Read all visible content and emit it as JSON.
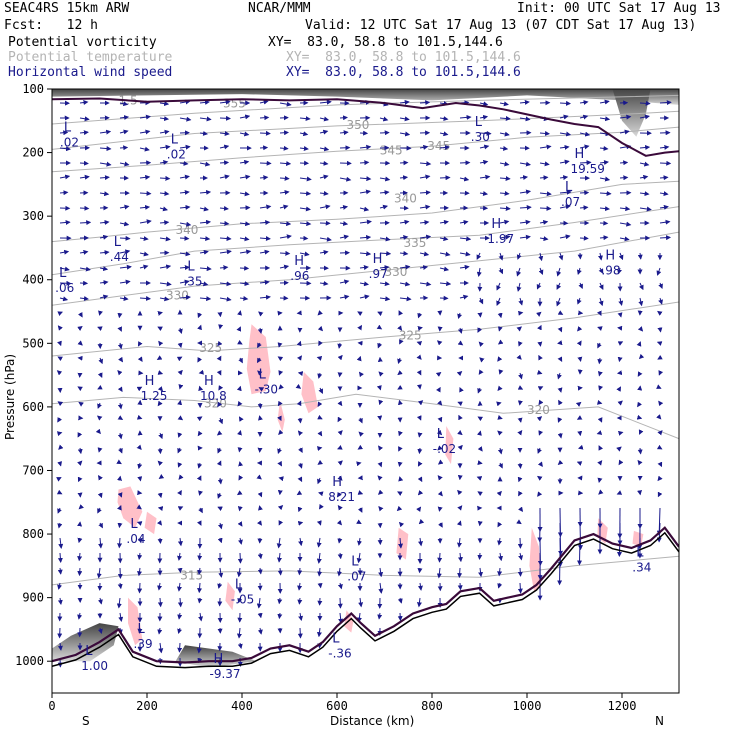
{
  "header": {
    "model": "SEAC4RS 15km ARW",
    "org": "NCAR/MMM",
    "init": "Init: 00 UTC Sat 17 Aug 13",
    "fcst": "Fcst:   12 h",
    "valid": "Valid: 12 UTC Sat 17 Aug 13 (07 CDT Sat 17 Aug 13)"
  },
  "legend": [
    {
      "name": "Potential vorticity",
      "xy": "XY=  83.0, 58.8 to 101.5,144.6",
      "color": "#000000"
    },
    {
      "name": "Potential temperature",
      "xy": "XY=  83.0, 58.8 to 101.5,144.6",
      "color": "#b4b4b4"
    },
    {
      "name": "Horizontal wind speed",
      "xy": "XY=  83.0, 58.8 to 101.5,144.6",
      "color": "#1a1a8c"
    }
  ],
  "chart_data": {
    "type": "cross-section",
    "xlabel": "Distance (km)",
    "ylabel": "Pressure (hPa)",
    "xlim": [
      0,
      1320
    ],
    "ylim": [
      1050,
      100
    ],
    "xticks": [
      0,
      200,
      400,
      600,
      800,
      1000,
      1200
    ],
    "yticks": [
      100,
      200,
      300,
      400,
      500,
      600,
      700,
      800,
      900,
      1000
    ],
    "end_labels": {
      "left": "S",
      "right": "N"
    },
    "colors": {
      "pv": "#3a0a3a",
      "theta": "#b4b4b4",
      "wind": "#1a1a8c",
      "shade_pink": "#ffc0c8"
    },
    "theta_contours": [
      {
        "label": "315",
        "points": [
          [
            0,
            880
          ],
          [
            150,
            865
          ],
          [
            300,
            860
          ],
          [
            500,
            858
          ],
          [
            700,
            865
          ],
          [
            900,
            868
          ],
          [
            1100,
            850
          ],
          [
            1320,
            835
          ]
        ]
      },
      {
        "label": "320",
        "points": [
          [
            0,
            595
          ],
          [
            150,
            585
          ],
          [
            300,
            590
          ],
          [
            420,
            600
          ],
          [
            520,
            595
          ],
          [
            640,
            580
          ],
          [
            800,
            595
          ],
          [
            950,
            610
          ],
          [
            1150,
            600
          ],
          [
            1320,
            650
          ]
        ]
      },
      {
        "label": "325",
        "points": [
          [
            0,
            520
          ],
          [
            200,
            505
          ],
          [
            330,
            512
          ],
          [
            480,
            505
          ],
          [
            700,
            490
          ],
          [
            900,
            478
          ],
          [
            1100,
            460
          ],
          [
            1320,
            435
          ]
        ]
      },
      {
        "label": "330",
        "points": [
          [
            0,
            440
          ],
          [
            150,
            425
          ],
          [
            300,
            410
          ],
          [
            500,
            400
          ],
          [
            700,
            385
          ],
          [
            900,
            370
          ],
          [
            1100,
            355
          ],
          [
            1320,
            325
          ]
        ]
      },
      {
        "label": "335",
        "points": [
          [
            0,
            392
          ],
          [
            150,
            375
          ],
          [
            300,
            355
          ],
          [
            500,
            345
          ],
          [
            700,
            337
          ],
          [
            900,
            330
          ],
          [
            1100,
            310
          ],
          [
            1320,
            285
          ]
        ]
      },
      {
        "label": "340",
        "points": [
          [
            0,
            340
          ],
          [
            100,
            333
          ],
          [
            200,
            325
          ],
          [
            400,
            312
          ],
          [
            600,
            305
          ],
          [
            800,
            295
          ],
          [
            1000,
            275
          ],
          [
            1200,
            250
          ],
          [
            1320,
            245
          ]
        ]
      },
      {
        "label": "345",
        "points": [
          [
            0,
            230
          ],
          [
            200,
            220
          ],
          [
            400,
            208
          ],
          [
            600,
            198
          ],
          [
            800,
            190
          ],
          [
            1000,
            176
          ],
          [
            1200,
            168
          ],
          [
            1320,
            160
          ]
        ]
      },
      {
        "label": "350",
        "points": [
          [
            0,
            195
          ],
          [
            300,
            170
          ],
          [
            600,
            158
          ],
          [
            900,
            150
          ],
          [
            1200,
            140
          ],
          [
            1320,
            135
          ]
        ]
      },
      {
        "label": "355",
        "points": [
          [
            0,
            155
          ],
          [
            300,
            138
          ],
          [
            600,
            125
          ],
          [
            900,
            118
          ],
          [
            1320,
            110
          ]
        ]
      }
    ],
    "theta_label_positions": [
      {
        "label": "315",
        "p": 865,
        "x": 270
      },
      {
        "label": "320",
        "p": 595,
        "x": 320
      },
      {
        "label": "320",
        "p": 605,
        "x": 1000
      },
      {
        "label": "325",
        "p": 507,
        "x": 310
      },
      {
        "label": "325",
        "p": 488,
        "x": 730
      },
      {
        "label": "330",
        "p": 425,
        "x": 240
      },
      {
        "label": "330",
        "p": 388,
        "x": 700
      },
      {
        "label": "335",
        "p": 342,
        "x": 740
      },
      {
        "label": "340",
        "p": 322,
        "x": 260
      },
      {
        "label": "340",
        "p": 272,
        "x": 720
      },
      {
        "label": "345",
        "p": 197,
        "x": 690
      },
      {
        "label": "345",
        "p": 190,
        "x": 790
      },
      {
        "label": "350",
        "p": 157,
        "x": 620
      },
      {
        "label": "355",
        "p": 123,
        "x": 360
      },
      {
        "label": "1.5",
        "p": 118,
        "x": 140
      }
    ],
    "pv_contour": [
      [
        0,
        116
      ],
      [
        100,
        115
      ],
      [
        200,
        120
      ],
      [
        300,
        118
      ],
      [
        400,
        116
      ],
      [
        500,
        118
      ],
      [
        600,
        116
      ],
      [
        700,
        122
      ],
      [
        780,
        130
      ],
      [
        850,
        122
      ],
      [
        900,
        126
      ],
      [
        950,
        132
      ],
      [
        1000,
        140
      ],
      [
        1050,
        148
      ],
      [
        1100,
        155
      ],
      [
        1150,
        160
      ],
      [
        1200,
        185
      ],
      [
        1250,
        205
      ],
      [
        1290,
        200
      ],
      [
        1320,
        198
      ]
    ],
    "terrain": [
      [
        0,
        1000
      ],
      [
        50,
        990
      ],
      [
        100,
        970
      ],
      [
        140,
        950
      ],
      [
        170,
        985
      ],
      [
        220,
        1000
      ],
      [
        280,
        1002
      ],
      [
        330,
        1000
      ],
      [
        380,
        1000
      ],
      [
        420,
        995
      ],
      [
        460,
        980
      ],
      [
        500,
        975
      ],
      [
        540,
        985
      ],
      [
        570,
        970
      ],
      [
        600,
        945
      ],
      [
        630,
        925
      ],
      [
        650,
        940
      ],
      [
        680,
        960
      ],
      [
        720,
        945
      ],
      [
        760,
        925
      ],
      [
        800,
        915
      ],
      [
        830,
        910
      ],
      [
        860,
        890
      ],
      [
        900,
        885
      ],
      [
        930,
        905
      ],
      [
        960,
        900
      ],
      [
        990,
        895
      ],
      [
        1020,
        880
      ],
      [
        1050,
        855
      ],
      [
        1100,
        810
      ],
      [
        1140,
        800
      ],
      [
        1180,
        815
      ],
      [
        1220,
        822
      ],
      [
        1260,
        810
      ],
      [
        1290,
        790
      ],
      [
        1320,
        820
      ]
    ],
    "hl_markers": [
      {
        "type": "L",
        "value": ".06",
        "x": 15,
        "p": 405
      },
      {
        "type": "L",
        "value": ".02",
        "x": 25,
        "p": 176
      },
      {
        "type": "L",
        "value": ".44",
        "x": 130,
        "p": 356
      },
      {
        "type": "L",
        "value": ".02",
        "x": 250,
        "p": 195
      },
      {
        "type": "L",
        "value": ".35",
        "x": 285,
        "p": 395
      },
      {
        "type": "H",
        "value": ".96",
        "x": 510,
        "p": 386
      },
      {
        "type": "H",
        "value": ".97",
        "x": 675,
        "p": 383
      },
      {
        "type": "L",
        "value": ".30",
        "x": 890,
        "p": 168
      },
      {
        "type": "L",
        "value": ".07",
        "x": 1080,
        "p": 270
      },
      {
        "type": "H",
        "value": "1.97",
        "x": 925,
        "p": 328
      },
      {
        "type": "H",
        "value": ".98",
        "x": 1165,
        "p": 378
      },
      {
        "type": "H",
        "value": "19.59",
        "x": 1100,
        "p": 218
      },
      {
        "type": "H",
        "value": "1.25",
        "x": 195,
        "p": 575
      },
      {
        "type": "H",
        "value": "10.8",
        "x": 320,
        "p": 575
      },
      {
        "type": "L",
        "value": "-.30",
        "x": 435,
        "p": 565
      },
      {
        "type": "L",
        "value": "-.02",
        "x": 810,
        "p": 658
      },
      {
        "type": "H",
        "value": "8.21",
        "x": 590,
        "p": 734
      },
      {
        "type": "L",
        "value": ".04",
        "x": 165,
        "p": 800
      },
      {
        "type": "L",
        "value": ".07",
        "x": 630,
        "p": 859
      },
      {
        "type": "L",
        "value": "-.05",
        "x": 385,
        "p": 895
      },
      {
        "type": "L",
        "value": ".34",
        "x": 1230,
        "p": 845
      },
      {
        "type": "L",
        "value": ".39",
        "x": 180,
        "p": 965
      },
      {
        "type": "L",
        "value": "-.36",
        "x": 590,
        "p": 980
      },
      {
        "type": "L",
        "value": "1.00",
        "x": 70,
        "p": 1000
      },
      {
        "type": "H",
        "value": "-9.37",
        "x": 340,
        "p": 1012
      }
    ],
    "pink_regions": [
      [
        [
          420,
          470
        ],
        [
          450,
          490
        ],
        [
          460,
          545
        ],
        [
          450,
          575
        ],
        [
          420,
          580
        ],
        [
          410,
          540
        ],
        [
          415,
          500
        ]
      ],
      [
        [
          530,
          545
        ],
        [
          550,
          560
        ],
        [
          560,
          600
        ],
        [
          540,
          610
        ],
        [
          525,
          580
        ]
      ],
      [
        [
          480,
          590
        ],
        [
          490,
          620
        ],
        [
          485,
          640
        ],
        [
          475,
          620
        ]
      ],
      [
        [
          140,
          730
        ],
        [
          165,
          725
        ],
        [
          190,
          765
        ],
        [
          175,
          790
        ],
        [
          150,
          775
        ],
        [
          138,
          750
        ]
      ],
      [
        [
          200,
          765
        ],
        [
          220,
          775
        ],
        [
          215,
          800
        ],
        [
          195,
          790
        ]
      ],
      [
        [
          730,
          790
        ],
        [
          750,
          800
        ],
        [
          745,
          840
        ],
        [
          725,
          830
        ]
      ],
      [
        [
          830,
          630
        ],
        [
          845,
          650
        ],
        [
          840,
          690
        ],
        [
          828,
          675
        ]
      ],
      [
        [
          1010,
          790
        ],
        [
          1025,
          820
        ],
        [
          1030,
          880
        ],
        [
          1015,
          890
        ],
        [
          1005,
          850
        ]
      ],
      [
        [
          1150,
          775
        ],
        [
          1170,
          790
        ],
        [
          1165,
          815
        ],
        [
          1148,
          805
        ]
      ],
      [
        [
          1225,
          795
        ],
        [
          1245,
          800
        ],
        [
          1240,
          820
        ],
        [
          1222,
          815
        ]
      ],
      [
        [
          160,
          900
        ],
        [
          180,
          915
        ],
        [
          190,
          965
        ],
        [
          175,
          975
        ],
        [
          160,
          940
        ]
      ],
      [
        [
          370,
          875
        ],
        [
          385,
          890
        ],
        [
          380,
          920
        ],
        [
          365,
          905
        ]
      ],
      [
        [
          620,
          920
        ],
        [
          635,
          935
        ],
        [
          630,
          955
        ],
        [
          615,
          945
        ]
      ]
    ],
    "gray_regions": [
      [
        [
          0,
          980
        ],
        [
          40,
          960
        ],
        [
          100,
          940
        ],
        [
          140,
          945
        ],
        [
          130,
          975
        ],
        [
          80,
          1000
        ],
        [
          0,
          1000
        ]
      ],
      [
        [
          0,
          100
        ],
        [
          1320,
          100
        ],
        [
          1320,
          125
        ],
        [
          1200,
          118
        ],
        [
          1000,
          110
        ],
        [
          800,
          118
        ],
        [
          600,
          112
        ],
        [
          400,
          108
        ],
        [
          200,
          110
        ],
        [
          0,
          112
        ]
      ],
      [
        [
          1180,
          100
        ],
        [
          1260,
          100
        ],
        [
          1250,
          140
        ],
        [
          1230,
          175
        ],
        [
          1200,
          150
        ]
      ],
      [
        [
          280,
          975
        ],
        [
          380,
          985
        ],
        [
          430,
          1000
        ],
        [
          330,
          1010
        ],
        [
          260,
          1000
        ]
      ]
    ]
  }
}
